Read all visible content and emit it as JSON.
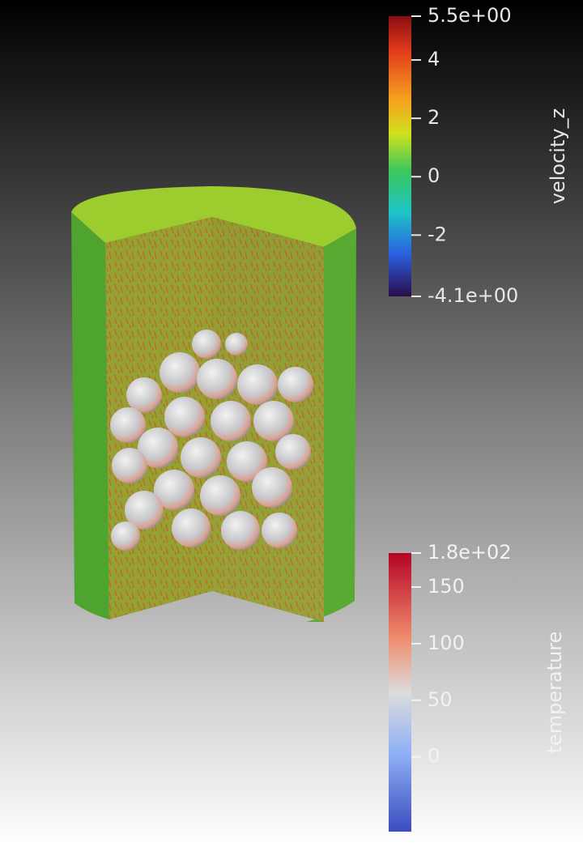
{
  "colorbars": [
    {
      "title": "velocity_z",
      "range": [
        -4.1,
        5.5
      ],
      "ticks": [
        {
          "value": 5.5,
          "label": "5.5e+00"
        },
        4,
        2,
        0,
        -2,
        {
          "value": -4.1,
          "label": "-4.1e+00"
        }
      ]
    },
    {
      "title": "temperature",
      "range": [
        -66,
        180
      ],
      "ticks": [
        {
          "value": 180,
          "label": "1.8e+02"
        },
        150,
        100,
        50,
        0
      ]
    }
  ]
}
